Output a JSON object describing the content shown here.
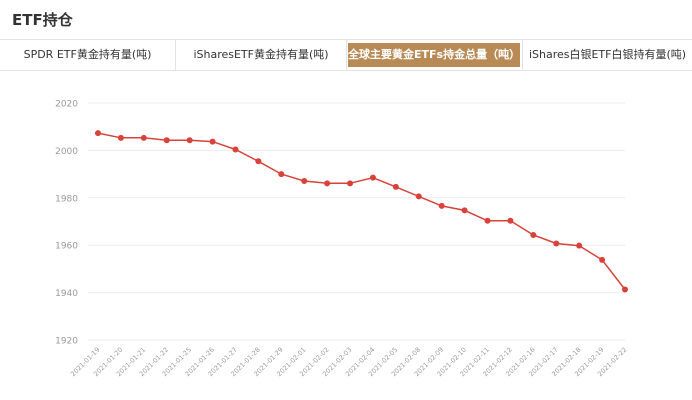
{
  "page": {
    "title": "ETF持仓"
  },
  "tabs": [
    {
      "label": "SPDR ETF黄金持有量(吨)",
      "active": false
    },
    {
      "label": "iSharesETF黄金持有量(吨)",
      "active": false
    },
    {
      "label": "全球主要黄金ETFs持金总量（吨）",
      "active": true
    },
    {
      "label": "iShares白银ETF白银持有量(吨)",
      "active": false
    }
  ],
  "colors": {
    "accent": "#b88a56",
    "line": "#d9423a",
    "grid": "#ebebeb",
    "tick": "#999999"
  },
  "chart_data": {
    "type": "line",
    "title": "",
    "xlabel": "",
    "ylabel": "",
    "ylim": [
      1920,
      2020
    ],
    "yticks": [
      1920,
      1940,
      1960,
      1980,
      2000,
      2020
    ],
    "grid": true,
    "x": [
      "2021-01-19",
      "2021-01-20",
      "2021-01-21",
      "2021-01-22",
      "2021-01-25",
      "2021-01-26",
      "2021-01-27",
      "2021-01-28",
      "2021-01-29",
      "2021-02-01",
      "2021-02-02",
      "2021-02-03",
      "2021-02-04",
      "2021-02-05",
      "2021-02-08",
      "2021-02-09",
      "2021-02-10",
      "2021-02-11",
      "2021-02-12",
      "2021-02-16",
      "2021-02-17",
      "2021-02-18",
      "2021-02-19",
      "2021-02-22"
    ],
    "series": [
      {
        "values": [
          2007.3,
          2005.3,
          2005.3,
          2004.3,
          2004.3,
          2003.7,
          2000.4,
          1995.4,
          1990.0,
          1987.1,
          1986.1,
          1986.1,
          1988.5,
          1984.6,
          1980.6,
          1976.6,
          1974.7,
          1970.3,
          1970.3,
          1964.3,
          1960.7,
          1959.8,
          1953.8,
          1941.3
        ]
      }
    ]
  }
}
